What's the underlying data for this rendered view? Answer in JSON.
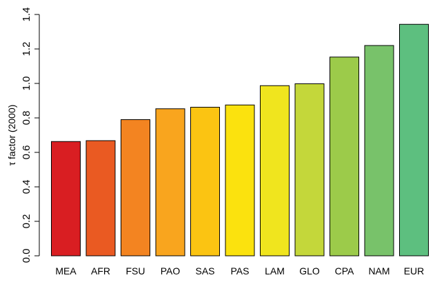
{
  "chart_data": {
    "type": "bar",
    "title": "",
    "xlabel": "",
    "ylabel": "τ factor (2000)",
    "categories": [
      "MEA",
      "AFR",
      "FSU",
      "PAO",
      "SAS",
      "PAS",
      "LAM",
      "GLO",
      "CPA",
      "NAM",
      "EUR"
    ],
    "values": [
      0.663,
      0.668,
      0.79,
      0.853,
      0.862,
      0.875,
      0.987,
      0.998,
      1.153,
      1.22,
      1.343
    ],
    "colors": [
      "#d91e22",
      "#ea5a22",
      "#f38421",
      "#f9a51e",
      "#fbc412",
      "#fbe20e",
      "#f0e51e",
      "#c4d73a",
      "#9ccb4a",
      "#78c26a",
      "#5dbf7f"
    ],
    "ylim": [
      0,
      1.4
    ],
    "yticks": [
      "0.0",
      "0.2",
      "0.4",
      "0.6",
      "0.8",
      "1.0",
      "1.2",
      "1.4"
    ],
    "grid": false,
    "legend": "none"
  }
}
